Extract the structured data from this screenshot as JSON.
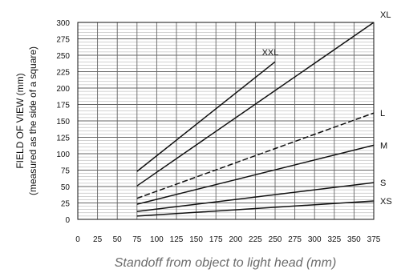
{
  "chart_data": {
    "type": "line",
    "title": "",
    "xlabel": "Standoff from object to light head (mm)",
    "ylabel_line1": "FIELD OF VIEW (mm)",
    "ylabel_line2": "(measured as the side of a square)",
    "xlim": [
      0,
      375
    ],
    "ylim": [
      0,
      300
    ],
    "x_ticks": [
      0,
      25,
      50,
      75,
      100,
      125,
      150,
      175,
      200,
      225,
      250,
      275,
      300,
      325,
      350,
      375
    ],
    "y_ticks": [
      0,
      25,
      50,
      75,
      100,
      125,
      150,
      175,
      200,
      225,
      250,
      275,
      300
    ],
    "grid": true,
    "series": [
      {
        "name": "XXL",
        "points": [
          [
            75,
            73
          ],
          [
            250,
            240
          ]
        ],
        "dashed": false
      },
      {
        "name": "XL",
        "points": [
          [
            75,
            51
          ],
          [
            375,
            300
          ]
        ],
        "dashed": false
      },
      {
        "name": "L",
        "points": [
          [
            75,
            32
          ],
          [
            375,
            162
          ]
        ],
        "dashed": true
      },
      {
        "name": "M",
        "points": [
          [
            75,
            23
          ],
          [
            375,
            113
          ]
        ],
        "dashed": false
      },
      {
        "name": "S",
        "points": [
          [
            75,
            12
          ],
          [
            375,
            56
          ]
        ],
        "dashed": false
      },
      {
        "name": "XS",
        "points": [
          [
            75,
            5
          ],
          [
            375,
            28
          ]
        ],
        "dashed": false
      }
    ]
  }
}
